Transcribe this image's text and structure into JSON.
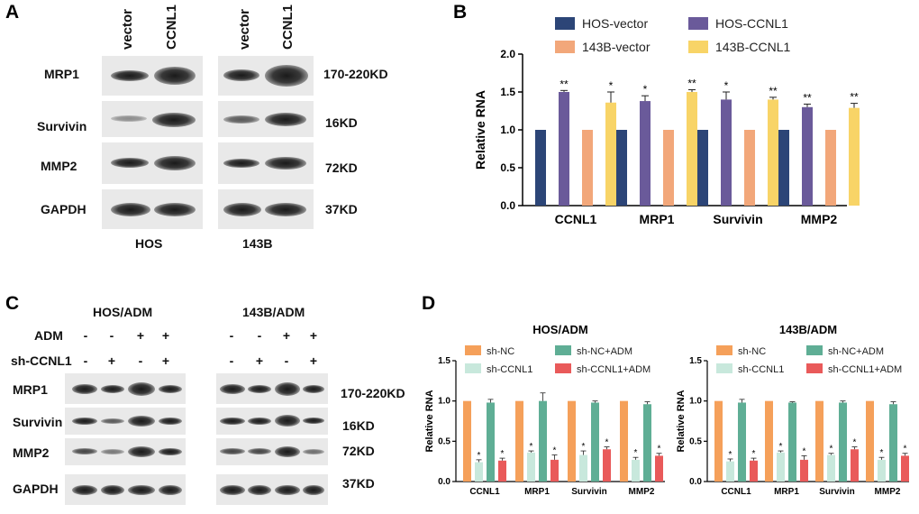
{
  "panelA": {
    "letter": "A",
    "lane_labels": [
      "vector",
      "CCNL1",
      "vector",
      "CCNL1"
    ],
    "proteins": [
      "MRP1",
      "Survivin",
      "MMP2",
      "GAPDH"
    ],
    "sizes": [
      "170-220KD",
      "16KD",
      "72KD",
      "37KD"
    ],
    "cell_lines": [
      "HOS",
      "143B"
    ]
  },
  "panelB": {
    "letter": "B",
    "legend": [
      "HOS-vector",
      "HOS-CCNL1",
      "143B-vector",
      "143B-CCNL1"
    ],
    "colors": [
      "#2c4577",
      "#6a5a9a",
      "#f2a77a",
      "#f8d467"
    ],
    "ylabel": "Relative RNA",
    "yticks": [
      "0.0",
      "0.5",
      "1.0",
      "1.5",
      "2.0"
    ],
    "sig": [
      [
        "**",
        "*"
      ],
      [
        "*",
        "**"
      ],
      [
        "*",
        "**"
      ],
      [
        "**",
        "**"
      ]
    ]
  },
  "panelC": {
    "letter": "C",
    "groups": [
      "HOS/ADM",
      "143B/ADM"
    ],
    "row_labels": [
      "ADM",
      "sh-CCNL1"
    ],
    "adm_signs": [
      "-",
      "-",
      "+",
      "+"
    ],
    "sh_signs": [
      "-",
      "+",
      "-",
      "+"
    ],
    "proteins": [
      "MRP1",
      "Survivin",
      "MMP2",
      "GAPDH"
    ],
    "sizes": [
      "170-220KD",
      "16KD",
      "72KD",
      "37KD"
    ]
  },
  "panelD": {
    "letter": "D",
    "legend": [
      "sh-NC",
      "sh-NC+ADM",
      "sh-CCNL1",
      "sh-CCNL1+ADM"
    ],
    "colors": [
      "#f5a05a",
      "#5fae95",
      "#c8e8dc",
      "#e95a5a"
    ],
    "ylabel": "Relative RNA",
    "yticks": [
      "0.0",
      "0.5",
      "1.0",
      "1.5"
    ]
  },
  "chart_data": [
    {
      "type": "bar",
      "title": "",
      "xlabel": "",
      "ylabel": "Relative RNA",
      "ylim": [
        0,
        2.0
      ],
      "categories": [
        "CCNL1",
        "MRP1",
        "Survivin",
        "MMP2"
      ],
      "series": [
        {
          "name": "HOS-vector",
          "values": [
            1.0,
            1.0,
            1.0,
            1.0
          ],
          "err": [
            0,
            0,
            0,
            0
          ]
        },
        {
          "name": "HOS-CCNL1",
          "values": [
            1.5,
            1.38,
            1.4,
            1.3
          ],
          "err": [
            0.02,
            0.07,
            0.1,
            0.04
          ]
        },
        {
          "name": "143B-vector",
          "values": [
            1.0,
            1.0,
            1.0,
            1.0
          ],
          "err": [
            0,
            0,
            0,
            0
          ]
        },
        {
          "name": "143B-CCNL1",
          "values": [
            1.36,
            1.5,
            1.4,
            1.29
          ],
          "err": [
            0.14,
            0.03,
            0.03,
            0.06
          ]
        }
      ],
      "legend": "top"
    },
    {
      "type": "bar",
      "title": "HOS/ADM",
      "xlabel": "",
      "ylabel": "Relative RNA",
      "ylim": [
        0,
        1.5
      ],
      "categories": [
        "CCNL1",
        "MRP1",
        "Survivin",
        "MMP2"
      ],
      "series": [
        {
          "name": "sh-NC",
          "values": [
            1.0,
            1.0,
            1.0,
            1.0
          ],
          "err": [
            0,
            0,
            0,
            0
          ]
        },
        {
          "name": "sh-CCNL1",
          "values": [
            0.24,
            0.36,
            0.33,
            0.27
          ],
          "err": [
            0.03,
            0.02,
            0.05,
            0.03
          ]
        },
        {
          "name": "sh-NC+ADM",
          "values": [
            0.98,
            1.0,
            0.98,
            0.96
          ],
          "err": [
            0.04,
            0.1,
            0.02,
            0.03
          ]
        },
        {
          "name": "sh-CCNL1+ADM",
          "values": [
            0.26,
            0.27,
            0.4,
            0.32
          ],
          "err": [
            0.03,
            0.06,
            0.03,
            0.03
          ]
        }
      ],
      "legend": "top"
    },
    {
      "type": "bar",
      "title": "143B/ADM",
      "xlabel": "",
      "ylabel": "Relative RNA",
      "ylim": [
        0,
        1.5
      ],
      "categories": [
        "CCNL1",
        "MRP1",
        "Survivin",
        "MMP2"
      ],
      "series": [
        {
          "name": "sh-NC",
          "values": [
            1.0,
            1.0,
            1.0,
            1.0
          ],
          "err": [
            0,
            0,
            0,
            0
          ]
        },
        {
          "name": "sh-CCNL1",
          "values": [
            0.25,
            0.36,
            0.33,
            0.27
          ],
          "err": [
            0.03,
            0.02,
            0.02,
            0.03
          ]
        },
        {
          "name": "sh-NC+ADM",
          "values": [
            0.98,
            0.98,
            0.98,
            0.96
          ],
          "err": [
            0.04,
            0.01,
            0.02,
            0.03
          ]
        },
        {
          "name": "sh-CCNL1+ADM",
          "values": [
            0.26,
            0.27,
            0.4,
            0.32
          ],
          "err": [
            0.03,
            0.05,
            0.03,
            0.03
          ]
        }
      ],
      "legend": "top"
    }
  ]
}
